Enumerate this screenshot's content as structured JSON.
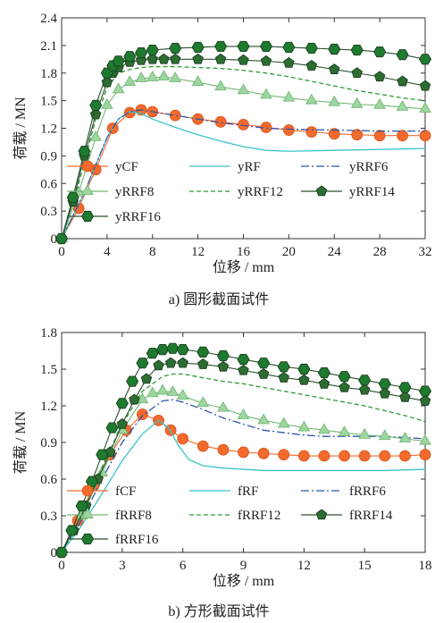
{
  "chart_data": [
    {
      "type": "line",
      "xlabel": "位移 / mm",
      "ylabel": "荷载 / MN",
      "caption": "a) 圆形截面试件",
      "xlim": [
        0,
        32
      ],
      "ylim": [
        0,
        2.4
      ],
      "xticks": [
        "0",
        "4",
        "8",
        "12",
        "16",
        "20",
        "24",
        "28",
        "32"
      ],
      "yticks": [
        "0",
        "0.3",
        "0.6",
        "0.9",
        "1.2",
        "1.5",
        "1.8",
        "2.1",
        "2.4"
      ],
      "grid": false,
      "legend_position": "lower-center",
      "series": [
        {
          "name": "yCF",
          "color": "#f26a2c",
          "dash": "solid",
          "marker": "circle",
          "x": [
            0,
            1.5,
            3,
            4.5,
            6,
            7,
            8,
            10,
            12,
            14,
            16,
            18,
            20,
            22,
            24,
            26,
            28,
            30,
            32
          ],
          "y": [
            0,
            0.33,
            0.75,
            1.2,
            1.37,
            1.4,
            1.38,
            1.34,
            1.3,
            1.27,
            1.24,
            1.21,
            1.18,
            1.16,
            1.14,
            1.13,
            1.12,
            1.12,
            1.12
          ]
        },
        {
          "name": "yRF",
          "color": "#3cc3c9",
          "dash": "solid",
          "marker": "none",
          "x": [
            0,
            2,
            4,
            5,
            6,
            7,
            8,
            10,
            12,
            14,
            16,
            18,
            20,
            24,
            28,
            32
          ],
          "y": [
            0,
            0.5,
            1.1,
            1.3,
            1.38,
            1.36,
            1.3,
            1.21,
            1.13,
            1.06,
            1.0,
            0.96,
            0.95,
            0.96,
            0.97,
            0.98
          ]
        },
        {
          "name": "yRRF6",
          "color": "#2e54a8",
          "dash": "dashdot",
          "marker": "none",
          "x": [
            0,
            2,
            4,
            5,
            6,
            7,
            8,
            10,
            12,
            14,
            16,
            18,
            20,
            24,
            28,
            32
          ],
          "y": [
            0,
            0.5,
            1.1,
            1.3,
            1.38,
            1.4,
            1.38,
            1.34,
            1.3,
            1.26,
            1.23,
            1.2,
            1.19,
            1.18,
            1.17,
            1.17
          ]
        },
        {
          "name": "yRRF8",
          "color": "#9dd6a0",
          "edge": "#73b876",
          "dash": "solid",
          "marker": "triangle",
          "x": [
            0,
            1.5,
            3,
            4,
            5,
            6,
            7,
            8,
            9,
            10,
            12,
            14,
            16,
            18,
            20,
            22,
            24,
            26,
            28,
            30,
            32
          ],
          "y": [
            0,
            0.5,
            1.1,
            1.45,
            1.62,
            1.7,
            1.74,
            1.75,
            1.76,
            1.74,
            1.7,
            1.65,
            1.61,
            1.56,
            1.53,
            1.5,
            1.48,
            1.46,
            1.45,
            1.43,
            1.41
          ]
        },
        {
          "name": "yRRF12",
          "color": "#2f9a34",
          "dash": "dashed",
          "marker": "none",
          "x": [
            0,
            1.5,
            3,
            4,
            5,
            6,
            7,
            8,
            10,
            12,
            14,
            16,
            18,
            20,
            22,
            24,
            26,
            28,
            30,
            32
          ],
          "y": [
            0,
            0.6,
            1.3,
            1.64,
            1.8,
            1.84,
            1.86,
            1.87,
            1.87,
            1.86,
            1.85,
            1.83,
            1.8,
            1.76,
            1.71,
            1.66,
            1.61,
            1.57,
            1.53,
            1.5
          ]
        },
        {
          "name": "yRRF14",
          "color": "#2d6d32",
          "dash": "solid",
          "marker": "pentagon",
          "x": [
            0,
            1,
            2,
            3,
            4,
            4.5,
            5,
            6,
            7,
            8,
            9,
            10,
            12,
            14,
            16,
            18,
            20,
            22,
            24,
            26,
            28,
            30,
            32
          ],
          "y": [
            0,
            0.4,
            0.9,
            1.35,
            1.7,
            1.8,
            1.86,
            1.92,
            1.94,
            1.95,
            1.95,
            1.95,
            1.95,
            1.95,
            1.94,
            1.93,
            1.91,
            1.88,
            1.84,
            1.8,
            1.76,
            1.71,
            1.66
          ]
        },
        {
          "name": "yRRF16",
          "color": "#1e7a2e",
          "dash": "solid",
          "marker": "hexagon",
          "x": [
            0,
            1,
            2,
            3,
            4,
            4.5,
            5,
            6,
            7,
            8,
            10,
            12,
            14,
            16,
            18,
            20,
            22,
            24,
            26,
            28,
            30,
            32
          ],
          "y": [
            0,
            0.45,
            0.95,
            1.45,
            1.8,
            1.88,
            1.93,
            1.98,
            2.02,
            2.05,
            2.07,
            2.08,
            2.09,
            2.09,
            2.09,
            2.08,
            2.07,
            2.06,
            2.05,
            2.03,
            2.0,
            1.95
          ]
        }
      ]
    },
    {
      "type": "line",
      "xlabel": "位移 / mm",
      "ylabel": "荷载 / MN",
      "caption": "b) 方形截面试件",
      "xlim": [
        0,
        18
      ],
      "ylim": [
        0,
        1.8
      ],
      "xticks": [
        "0",
        "3",
        "6",
        "9",
        "12",
        "15",
        "18"
      ],
      "yticks": [
        "0",
        "0.3",
        "0.6",
        "0.9",
        "1.2",
        "1.5",
        "1.8"
      ],
      "grid": false,
      "legend_position": "lower-center",
      "series": [
        {
          "name": "fCF",
          "color": "#f26a2c",
          "dash": "solid",
          "marker": "circle",
          "x": [
            0,
            0.8,
            1.6,
            2.4,
            3.2,
            4.0,
            4.8,
            5.4,
            6.0,
            7.0,
            8.0,
            9.0,
            10.0,
            11.0,
            12.0,
            13.0,
            14.0,
            15.0,
            16.0,
            17.0,
            18.0
          ],
          "y": [
            0,
            0.26,
            0.55,
            0.8,
            1.0,
            1.13,
            1.08,
            1.0,
            0.93,
            0.87,
            0.84,
            0.82,
            0.81,
            0.8,
            0.79,
            0.79,
            0.79,
            0.79,
            0.79,
            0.79,
            0.8
          ]
        },
        {
          "name": "fRF",
          "color": "#3cc3c9",
          "dash": "solid",
          "marker": "none",
          "x": [
            0,
            1,
            2,
            3,
            4,
            4.8,
            5.3,
            5.8,
            6.3,
            7,
            8,
            9,
            10,
            12,
            14,
            16,
            18
          ],
          "y": [
            0,
            0.22,
            0.48,
            0.75,
            0.97,
            1.08,
            1.02,
            0.87,
            0.76,
            0.71,
            0.69,
            0.68,
            0.67,
            0.67,
            0.67,
            0.67,
            0.68
          ]
        },
        {
          "name": "fRRF6",
          "color": "#2e54a8",
          "dash": "dashdot",
          "marker": "none",
          "x": [
            0,
            1,
            2,
            3,
            4,
            5,
            5.5,
            6,
            7,
            8,
            9,
            10,
            11,
            12,
            13,
            14,
            15,
            16,
            17,
            18
          ],
          "y": [
            0,
            0.27,
            0.6,
            0.9,
            1.12,
            1.24,
            1.25,
            1.23,
            1.17,
            1.1,
            1.05,
            1.0,
            0.98,
            0.96,
            0.95,
            0.95,
            0.95,
            0.95,
            0.94,
            0.93
          ]
        },
        {
          "name": "fRRF8",
          "color": "#9dd6a0",
          "edge": "#73b876",
          "dash": "solid",
          "marker": "triangle",
          "x": [
            0,
            1,
            2,
            3,
            4,
            4.5,
            5,
            5.5,
            6,
            7,
            8,
            9,
            10,
            11,
            12,
            13,
            14,
            15,
            16,
            17,
            18
          ],
          "y": [
            0,
            0.3,
            0.65,
            1.0,
            1.25,
            1.3,
            1.32,
            1.31,
            1.28,
            1.22,
            1.18,
            1.12,
            1.08,
            1.05,
            1.02,
            1.0,
            0.98,
            0.96,
            0.95,
            0.93,
            0.91
          ]
        },
        {
          "name": "fRRF12",
          "color": "#2f9a34",
          "dash": "dashed",
          "marker": "none",
          "x": [
            0,
            1,
            2,
            3,
            4,
            5,
            5.5,
            6,
            7,
            8,
            9,
            10,
            11,
            12,
            13,
            14,
            15,
            16,
            17,
            18
          ],
          "y": [
            0,
            0.3,
            0.7,
            1.05,
            1.32,
            1.44,
            1.46,
            1.46,
            1.43,
            1.4,
            1.38,
            1.35,
            1.32,
            1.29,
            1.26,
            1.23,
            1.2,
            1.16,
            1.12,
            1.07
          ]
        },
        {
          "name": "fRRF14",
          "color": "#2d6d32",
          "dash": "solid",
          "marker": "pentagon",
          "x": [
            0,
            0.6,
            1.2,
            1.8,
            2.4,
            3.0,
            3.6,
            4.2,
            4.8,
            5.4,
            6.0,
            7.0,
            8.0,
            9.0,
            10.0,
            11.0,
            12.0,
            13.0,
            14.0,
            15.0,
            16.0,
            17.0,
            18.0
          ],
          "y": [
            0,
            0.18,
            0.38,
            0.6,
            0.82,
            1.05,
            1.25,
            1.42,
            1.53,
            1.55,
            1.55,
            1.54,
            1.52,
            1.49,
            1.46,
            1.43,
            1.41,
            1.38,
            1.35,
            1.33,
            1.3,
            1.27,
            1.24
          ]
        },
        {
          "name": "fRRF16",
          "color": "#1e7a2e",
          "dash": "solid",
          "marker": "hexagon",
          "x": [
            0,
            0.5,
            1.0,
            1.5,
            2.0,
            2.5,
            3.0,
            3.5,
            4.0,
            4.5,
            5.0,
            5.5,
            6.0,
            7.0,
            8.0,
            9.0,
            10.0,
            11.0,
            12.0,
            13.0,
            14.0,
            15.0,
            16.0,
            17.0,
            18.0
          ],
          "y": [
            0,
            0.18,
            0.38,
            0.58,
            0.8,
            1.02,
            1.22,
            1.4,
            1.55,
            1.63,
            1.66,
            1.67,
            1.66,
            1.64,
            1.61,
            1.58,
            1.55,
            1.52,
            1.5,
            1.47,
            1.44,
            1.41,
            1.38,
            1.35,
            1.32
          ]
        }
      ]
    }
  ]
}
